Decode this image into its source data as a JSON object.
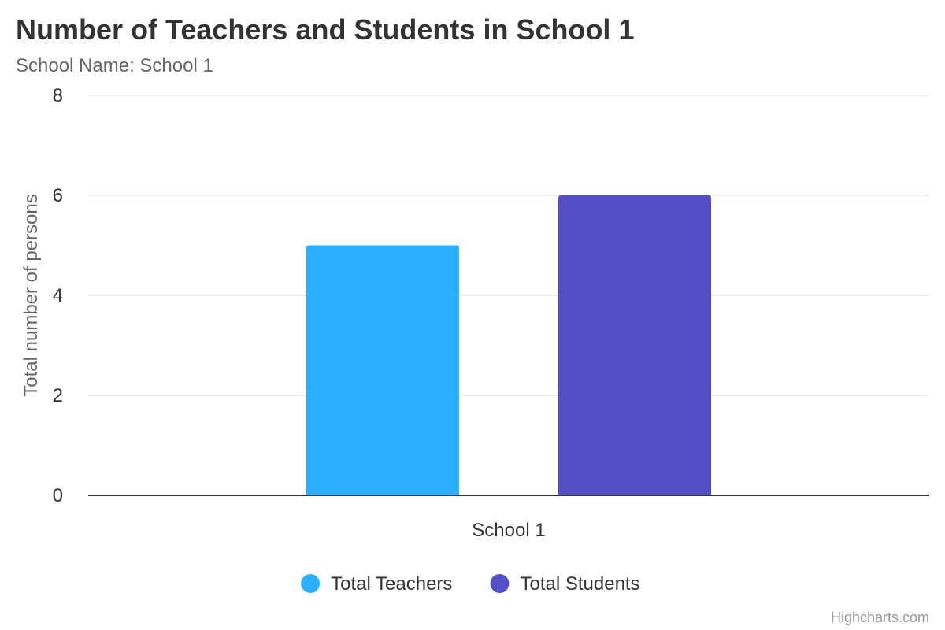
{
  "chart_data": {
    "type": "bar",
    "title": "Number of Teachers and Students in School 1",
    "subtitle": "School Name: School 1",
    "xlabel": "",
    "ylabel": "Total number of persons",
    "categories": [
      "School 1"
    ],
    "series": [
      {
        "name": "Total Teachers",
        "values": [
          5
        ],
        "color": "#2caffe"
      },
      {
        "name": "Total Students",
        "values": [
          6
        ],
        "color": "#544fc5"
      }
    ],
    "ylim": [
      0,
      8
    ],
    "yticks": [
      "0",
      "2",
      "4",
      "6",
      "8"
    ],
    "grid": true,
    "legend_position": "bottom-center",
    "credits": "Highcharts.com"
  }
}
